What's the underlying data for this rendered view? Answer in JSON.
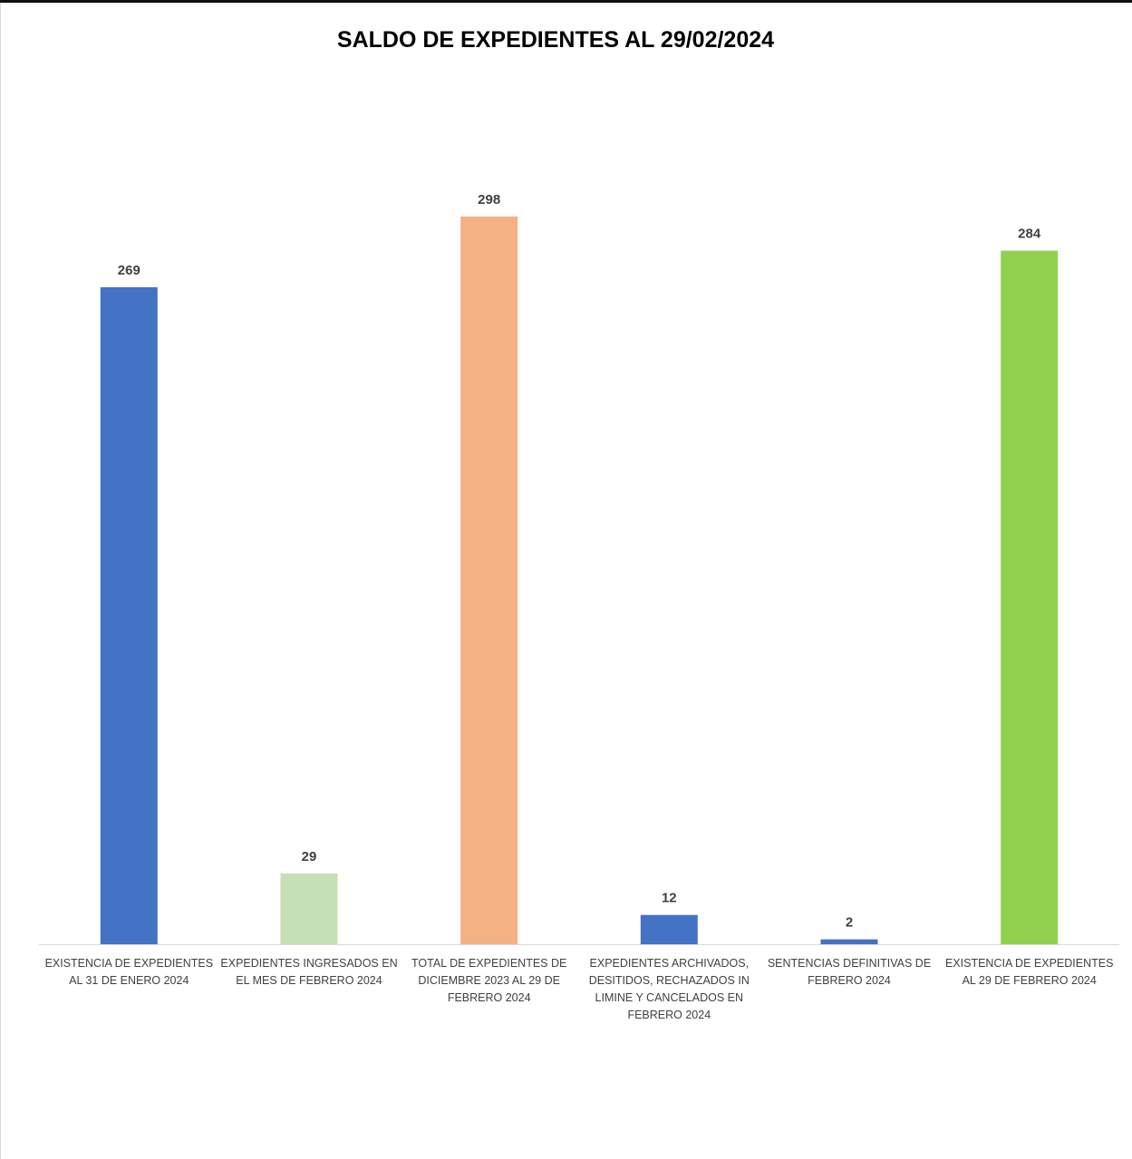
{
  "chart_data": {
    "type": "bar",
    "title": "SALDO DE EXPEDIENTES AL 29/02/2024",
    "categories": [
      [
        "EXISTENCIA DE EXPEDIENTES",
        "AL 31 DE ENERO 2024"
      ],
      [
        "EXPEDIENTES INGRESADOS EN",
        "EL MES DE FEBRERO 2024"
      ],
      [
        "TOTAL DE EXPEDIENTES DE",
        "DICIEMBRE 2023 AL 29 DE",
        "FEBRERO 2024"
      ],
      [
        "EXPEDIENTES ARCHIVADOS,",
        "DESITIDOS, RECHAZADOS IN",
        "LIMINE Y CANCELADOS EN",
        "FEBRERO 2024"
      ],
      [
        "SENTENCIAS DEFINITIVAS DE",
        "FEBRERO 2024"
      ],
      [
        "EXISTENCIA DE EXPEDIENTES",
        "AL 29 DE FEBRERO  2024"
      ]
    ],
    "values": [
      269,
      29,
      298,
      12,
      2,
      284
    ],
    "colors": [
      "#4472C4",
      "#C5E0B4",
      "#F4B183",
      "#4472C4",
      "#4472C4",
      "#92D050"
    ],
    "data_labels": [
      "269",
      "29",
      "298",
      "12",
      "2",
      "284"
    ],
    "xlabel": "",
    "ylabel": "",
    "ylim": [
      0,
      340
    ],
    "grid": false,
    "legend": "none",
    "axis_line_color": "#D9D9D9",
    "label_color": "#404040"
  }
}
